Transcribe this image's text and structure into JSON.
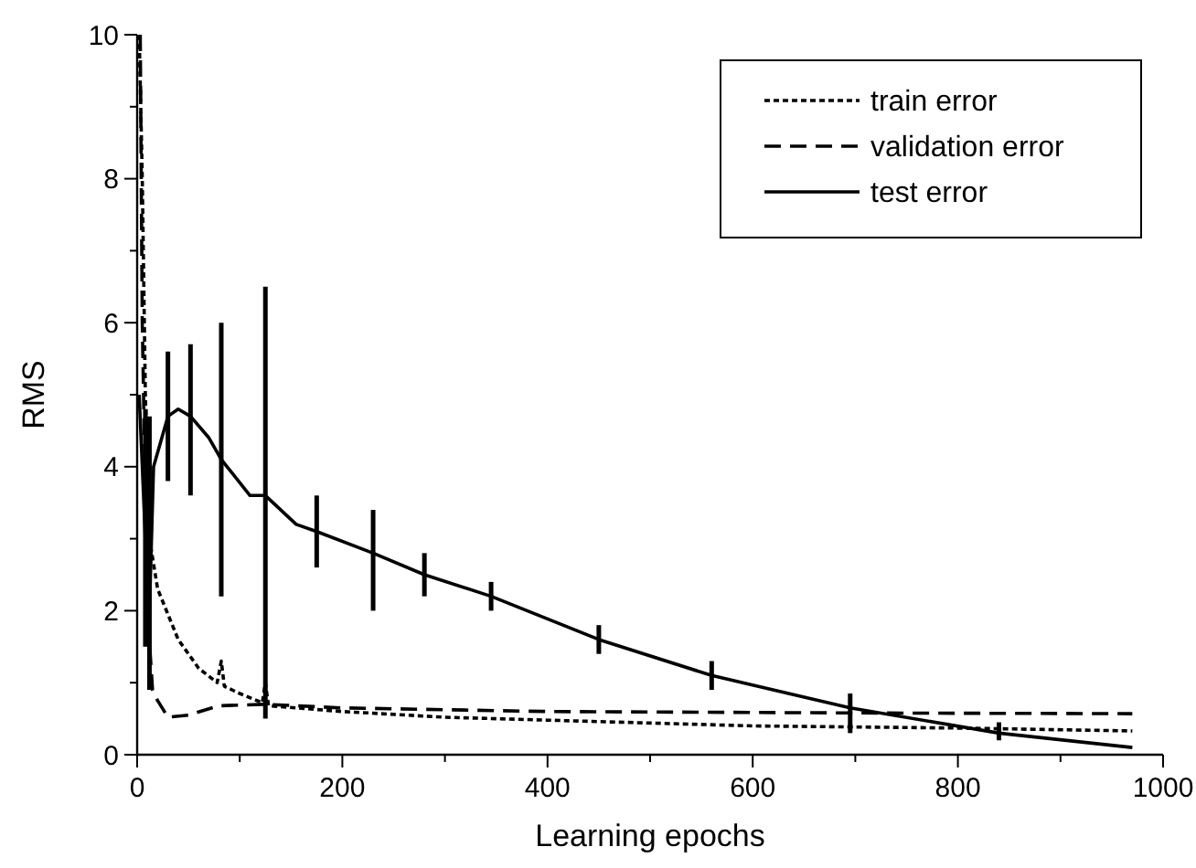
{
  "chart_data": {
    "type": "line",
    "xlabel": "Learning epochs",
    "ylabel": "RMS",
    "xlim": [
      0,
      1000
    ],
    "ylim": [
      0,
      10
    ],
    "xticks": [
      0,
      {
        "value": 100,
        "label": null
      },
      200,
      {
        "value": 300,
        "label": null
      },
      400,
      {
        "value": 500,
        "label": null
      },
      600,
      {
        "value": 700,
        "label": null
      },
      800,
      {
        "value": 900,
        "label": null
      },
      1000
    ],
    "yticks": [
      0,
      {
        "value": 1,
        "label": null
      },
      2,
      {
        "value": 3,
        "label": null
      },
      4,
      {
        "value": 5,
        "label": null
      },
      6,
      {
        "value": 7,
        "label": null
      },
      8,
      {
        "value": 9,
        "label": null
      },
      10
    ],
    "legend": "top right",
    "grid": false,
    "marker": "none",
    "series": [
      {
        "name": "train error",
        "color": "#000000",
        "line_style": "dotted",
        "x": [
          2,
          5,
          8,
          12,
          20,
          40,
          60,
          78,
          82,
          85,
          100,
          122,
          125,
          128,
          200,
          300,
          400,
          600,
          800,
          970
        ],
        "values": [
          10,
          8,
          5,
          3,
          2.3,
          1.6,
          1.2,
          1.0,
          1.3,
          0.95,
          0.85,
          0.72,
          1.0,
          0.68,
          0.6,
          0.52,
          0.48,
          0.4,
          0.37,
          0.33
        ]
      },
      {
        "name": "validation error",
        "color": "#000000",
        "line_style": "dashed",
        "x": [
          3,
          5,
          10,
          15,
          20,
          30,
          50,
          80,
          125,
          200,
          400,
          700,
          970
        ],
        "values": [
          10,
          6,
          2,
          0.9,
          0.75,
          0.52,
          0.55,
          0.68,
          0.7,
          0.65,
          0.6,
          0.58,
          0.57
        ]
      },
      {
        "name": "test error",
        "color": "#000000",
        "line_style": "solid",
        "x": [
          2,
          8,
          12,
          16,
          22,
          30,
          40,
          52,
          70,
          82,
          110,
          125,
          140,
          155,
          175,
          230,
          280,
          345,
          450,
          560,
          695,
          840,
          970
        ],
        "values": [
          5.0,
          3.0,
          2.0,
          4.0,
          4.3,
          4.7,
          4.8,
          4.7,
          4.4,
          4.1,
          3.6,
          3.6,
          3.4,
          3.2,
          3.1,
          2.8,
          2.5,
          2.2,
          1.6,
          1.1,
          0.65,
          0.3,
          0.1
        ],
        "errors": [
          null,
          [
            1.5,
            4.8
          ],
          [
            0.9,
            4.7
          ],
          null,
          null,
          [
            3.8,
            5.6
          ],
          null,
          [
            3.6,
            5.7
          ],
          null,
          [
            2.2,
            6.0
          ],
          null,
          [
            0.5,
            6.5
          ],
          null,
          null,
          [
            2.6,
            3.6
          ],
          [
            2.0,
            3.4
          ],
          [
            2.2,
            2.8
          ],
          [
            2.0,
            2.4
          ],
          [
            1.4,
            1.8
          ],
          [
            0.9,
            1.3
          ],
          [
            0.3,
            0.85
          ],
          [
            0.2,
            0.45
          ],
          null
        ]
      }
    ]
  }
}
